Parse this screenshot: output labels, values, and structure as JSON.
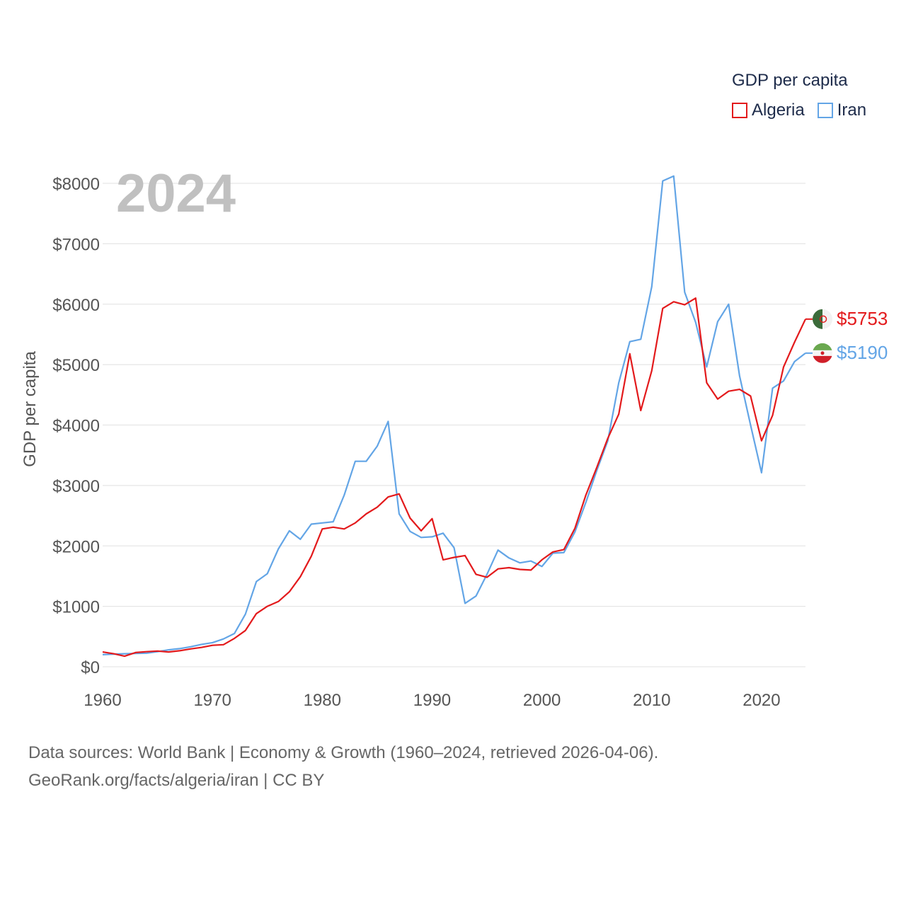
{
  "legend": {
    "title": "GDP per capita",
    "items": [
      {
        "name": "Algeria",
        "color": "#e31a1c"
      },
      {
        "name": "Iran",
        "color": "#63a5e6"
      }
    ]
  },
  "year_display": "2024",
  "source": {
    "line1": "Data sources: World Bank | Economy & Growth (1960–2024, retrieved 2026-04-06).",
    "line2": "GeoRank.org/facts/algeria/iran | CC BY"
  },
  "end_labels": {
    "algeria": "$5753",
    "iran": "$5190"
  },
  "chart_data": {
    "type": "line",
    "title": "",
    "xlabel": "",
    "ylabel": "GDP per capita",
    "xlim": [
      1960,
      2024
    ],
    "ylim": [
      0,
      8000
    ],
    "x_ticks": [
      1960,
      1970,
      1980,
      1990,
      2000,
      2010,
      2020
    ],
    "y_ticks": [
      0,
      1000,
      2000,
      3000,
      4000,
      5000,
      6000,
      7000,
      8000
    ],
    "y_tick_labels": [
      "$0",
      "$1000",
      "$2000",
      "$3000",
      "$4000",
      "$5000",
      "$6000",
      "$7000",
      "$8000"
    ],
    "x": [
      1960,
      1961,
      1962,
      1963,
      1964,
      1965,
      1966,
      1967,
      1968,
      1969,
      1970,
      1971,
      1972,
      1973,
      1974,
      1975,
      1976,
      1977,
      1978,
      1979,
      1980,
      1981,
      1982,
      1983,
      1984,
      1985,
      1986,
      1987,
      1988,
      1989,
      1990,
      1991,
      1992,
      1993,
      1994,
      1995,
      1996,
      1997,
      1998,
      1999,
      2000,
      2001,
      2002,
      2003,
      2004,
      2005,
      2006,
      2007,
      2008,
      2009,
      2010,
      2011,
      2012,
      2013,
      2014,
      2015,
      2016,
      2017,
      2018,
      2019,
      2020,
      2021,
      2022,
      2023,
      2024
    ],
    "series": [
      {
        "name": "Algeria",
        "color": "#e31a1c",
        "values": [
          245,
          215,
          175,
          235,
          250,
          260,
          245,
          265,
          295,
          320,
          355,
          365,
          470,
          600,
          880,
          1000,
          1080,
          1240,
          1490,
          1830,
          2280,
          2310,
          2280,
          2380,
          2530,
          2640,
          2810,
          2860,
          2460,
          2250,
          2450,
          1770,
          1810,
          1840,
          1530,
          1480,
          1620,
          1640,
          1610,
          1600,
          1770,
          1900,
          1940,
          2290,
          2840,
          3300,
          3780,
          4180,
          5180,
          4240,
          4900,
          5930,
          6040,
          5990,
          6100,
          4700,
          4430,
          4560,
          4590,
          4480,
          3740,
          4160,
          4960,
          5370,
          5753
        ]
      },
      {
        "name": "Iran",
        "color": "#63a5e6",
        "values": [
          200,
          210,
          215,
          220,
          225,
          250,
          280,
          300,
          330,
          370,
          400,
          460,
          550,
          870,
          1410,
          1540,
          1950,
          2250,
          2110,
          2360,
          2380,
          2400,
          2840,
          3400,
          3400,
          3650,
          4060,
          2530,
          2240,
          2140,
          2150,
          2210,
          1970,
          1050,
          1170,
          1530,
          1930,
          1800,
          1720,
          1750,
          1660,
          1880,
          1890,
          2230,
          2720,
          3250,
          3740,
          4700,
          5380,
          5420,
          6290,
          8040,
          8120,
          6200,
          5700,
          4960,
          5710,
          6000,
          4810,
          4000,
          3210,
          4610,
          4730,
          5050,
          5190
        ]
      }
    ]
  }
}
